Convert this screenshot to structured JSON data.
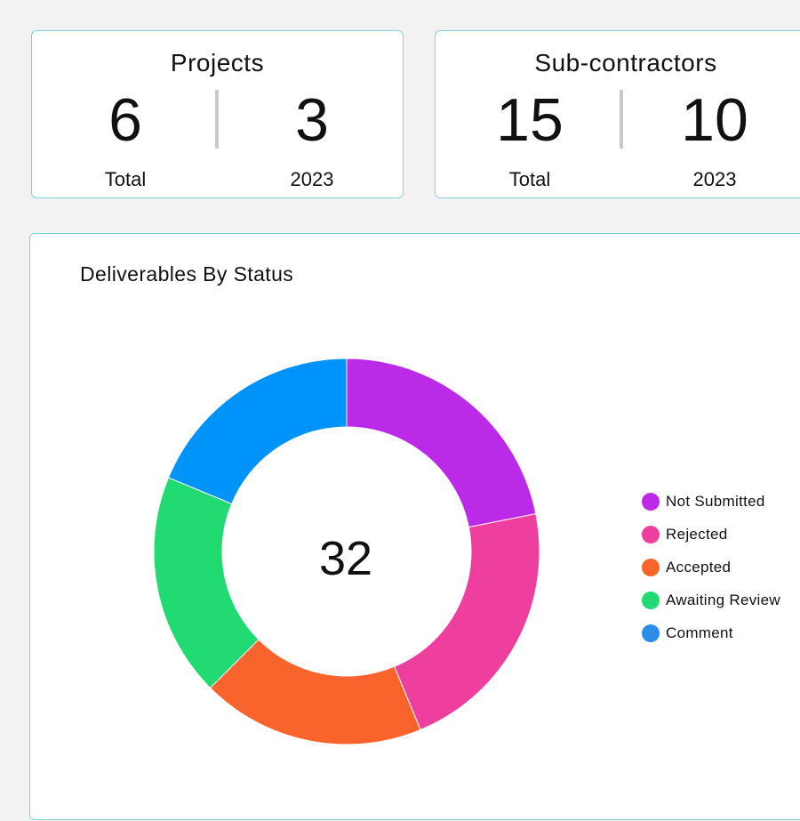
{
  "projects": {
    "title": "Projects",
    "total_value": "6",
    "total_label": "Total",
    "year_value": "3",
    "year_label": "2023"
  },
  "subcontractors": {
    "title": "Sub-contractors",
    "total_value": "15",
    "total_label": "Total",
    "year_value": "10",
    "year_label": "2023"
  },
  "deliverables": {
    "title": "Deliverables By Status",
    "center_total": "32"
  },
  "chart_data": {
    "type": "pie",
    "title": "Deliverables By Status",
    "legend_position": "right",
    "donut": true,
    "categories": [
      "Not Submitted",
      "Rejected",
      "Accepted",
      "Awaiting Review",
      "Comment"
    ],
    "values": [
      7,
      7,
      6,
      6,
      6
    ],
    "colors": [
      "#bb2ae6",
      "#ee3f9f",
      "#f9642c",
      "#22da72",
      "#0094fb"
    ],
    "legend_colors": [
      "#bb2ae6",
      "#ee3f9f",
      "#f9642c",
      "#22da72",
      "#2b8de8"
    ]
  }
}
